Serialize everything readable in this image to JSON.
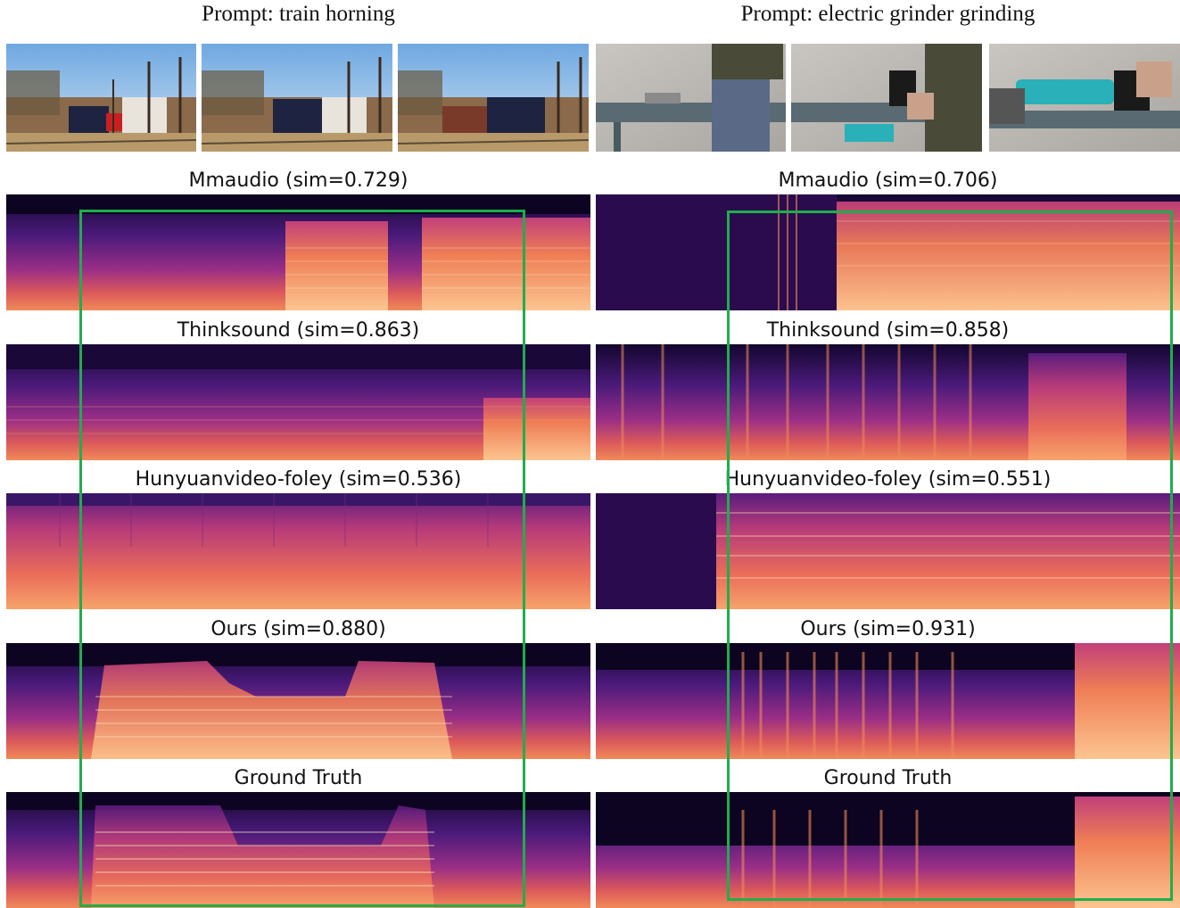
{
  "figure": {
    "columns": [
      {
        "prompt": "Prompt: train horning",
        "frames": [
          "train-frame-1",
          "train-frame-2",
          "train-frame-3"
        ],
        "panels": [
          {
            "title": "Mmaudio (sim=0.729)"
          },
          {
            "title": "Thinksound (sim=0.863)"
          },
          {
            "title": "Hunyuanvideo-foley (sim=0.536)"
          },
          {
            "title": "Ours (sim=0.880)"
          },
          {
            "title": "Ground Truth"
          }
        ]
      },
      {
        "prompt": "Prompt: electric grinder grinding",
        "frames": [
          "grinder-frame-1",
          "grinder-frame-2",
          "grinder-frame-3"
        ],
        "panels": [
          {
            "title": "Mmaudio (sim=0.706)"
          },
          {
            "title": "Thinksound (sim=0.858)"
          },
          {
            "title": "Hunyuanvideo-foley (sim=0.551)"
          },
          {
            "title": "Ours (sim=0.931)"
          },
          {
            "title": "Ground Truth"
          }
        ]
      }
    ],
    "colormap": "magma",
    "highlight_color": "#1fae4b"
  }
}
